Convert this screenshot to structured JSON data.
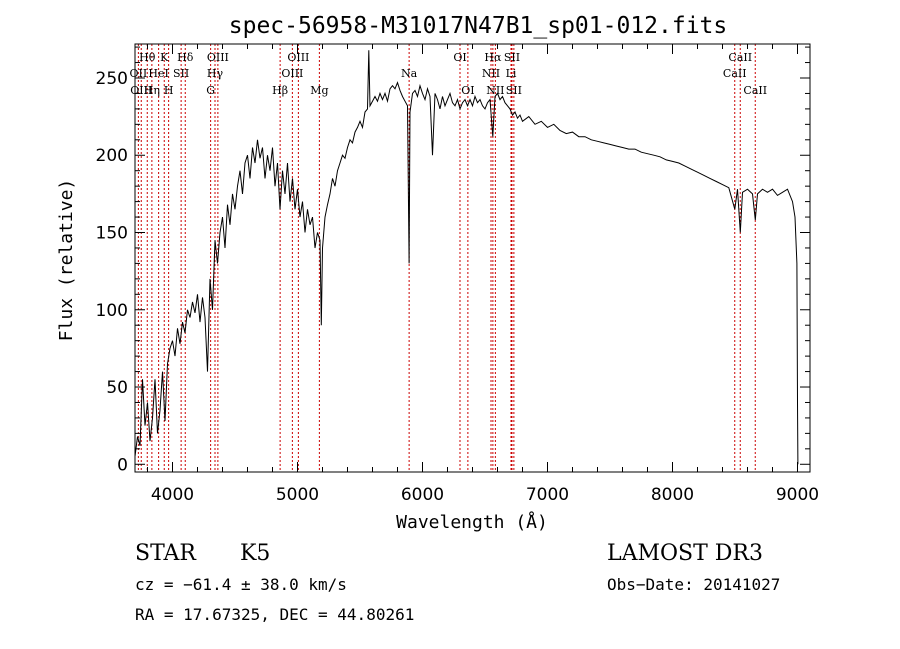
{
  "chart_data": {
    "type": "line",
    "title": "spec-56958-M31017N47B1_sp01-012.fits",
    "xlabel": "Wavelength (Å)",
    "ylabel": "Flux (relative)",
    "xlim": [
      3700,
      9100
    ],
    "ylim": [
      -5,
      272
    ],
    "x_ticks": [
      4000,
      5000,
      6000,
      7000,
      8000,
      9000
    ],
    "y_ticks": [
      0,
      50,
      100,
      150,
      200,
      250
    ],
    "spectrum_points": [
      [
        3700,
        5
      ],
      [
        3720,
        18
      ],
      [
        3740,
        12
      ],
      [
        3760,
        55
      ],
      [
        3780,
        25
      ],
      [
        3800,
        40
      ],
      [
        3820,
        15
      ],
      [
        3840,
        30
      ],
      [
        3860,
        55
      ],
      [
        3880,
        20
      ],
      [
        3900,
        35
      ],
      [
        3920,
        60
      ],
      [
        3940,
        28
      ],
      [
        3960,
        65
      ],
      [
        3980,
        75
      ],
      [
        4000,
        80
      ],
      [
        4020,
        70
      ],
      [
        4040,
        88
      ],
      [
        4060,
        78
      ],
      [
        4080,
        92
      ],
      [
        4100,
        85
      ],
      [
        4120,
        100
      ],
      [
        4140,
        95
      ],
      [
        4160,
        105
      ],
      [
        4180,
        98
      ],
      [
        4200,
        110
      ],
      [
        4220,
        92
      ],
      [
        4240,
        108
      ],
      [
        4260,
        95
      ],
      [
        4280,
        60
      ],
      [
        4300,
        120
      ],
      [
        4320,
        100
      ],
      [
        4340,
        145
      ],
      [
        4360,
        130
      ],
      [
        4380,
        150
      ],
      [
        4400,
        160
      ],
      [
        4420,
        140
      ],
      [
        4440,
        168
      ],
      [
        4460,
        155
      ],
      [
        4480,
        175
      ],
      [
        4500,
        165
      ],
      [
        4520,
        180
      ],
      [
        4540,
        190
      ],
      [
        4560,
        175
      ],
      [
        4580,
        195
      ],
      [
        4600,
        200
      ],
      [
        4620,
        185
      ],
      [
        4640,
        205
      ],
      [
        4660,
        195
      ],
      [
        4680,
        210
      ],
      [
        4700,
        198
      ],
      [
        4720,
        205
      ],
      [
        4740,
        185
      ],
      [
        4760,
        200
      ],
      [
        4780,
        190
      ],
      [
        4800,
        205
      ],
      [
        4820,
        180
      ],
      [
        4840,
        195
      ],
      [
        4860,
        165
      ],
      [
        4880,
        190
      ],
      [
        4900,
        175
      ],
      [
        4920,
        195
      ],
      [
        4940,
        170
      ],
      [
        4960,
        185
      ],
      [
        4980,
        165
      ],
      [
        5000,
        178
      ],
      [
        5020,
        160
      ],
      [
        5040,
        170
      ],
      [
        5060,
        150
      ],
      [
        5080,
        165
      ],
      [
        5100,
        155
      ],
      [
        5120,
        160
      ],
      [
        5140,
        140
      ],
      [
        5160,
        150
      ],
      [
        5180,
        145
      ],
      [
        5190,
        90
      ],
      [
        5200,
        140
      ],
      [
        5220,
        160
      ],
      [
        5240,
        168
      ],
      [
        5260,
        175
      ],
      [
        5280,
        185
      ],
      [
        5300,
        180
      ],
      [
        5320,
        190
      ],
      [
        5340,
        195
      ],
      [
        5360,
        200
      ],
      [
        5380,
        198
      ],
      [
        5400,
        205
      ],
      [
        5420,
        210
      ],
      [
        5440,
        208
      ],
      [
        5460,
        215
      ],
      [
        5480,
        218
      ],
      [
        5500,
        222
      ],
      [
        5520,
        218
      ],
      [
        5540,
        228
      ],
      [
        5560,
        230
      ],
      [
        5570,
        268
      ],
      [
        5580,
        232
      ],
      [
        5600,
        235
      ],
      [
        5620,
        238
      ],
      [
        5640,
        235
      ],
      [
        5660,
        240
      ],
      [
        5680,
        236
      ],
      [
        5700,
        240
      ],
      [
        5720,
        235
      ],
      [
        5740,
        243
      ],
      [
        5760,
        245
      ],
      [
        5780,
        243
      ],
      [
        5800,
        247
      ],
      [
        5820,
        242
      ],
      [
        5840,
        238
      ],
      [
        5860,
        235
      ],
      [
        5880,
        232
      ],
      [
        5893,
        130
      ],
      [
        5900,
        228
      ],
      [
        5920,
        240
      ],
      [
        5940,
        242
      ],
      [
        5960,
        238
      ],
      [
        5980,
        245
      ],
      [
        6000,
        240
      ],
      [
        6020,
        236
      ],
      [
        6040,
        243
      ],
      [
        6060,
        238
      ],
      [
        6080,
        200
      ],
      [
        6100,
        240
      ],
      [
        6120,
        236
      ],
      [
        6140,
        230
      ],
      [
        6160,
        238
      ],
      [
        6180,
        232
      ],
      [
        6200,
        236
      ],
      [
        6220,
        240
      ],
      [
        6240,
        234
      ],
      [
        6260,
        232
      ],
      [
        6280,
        236
      ],
      [
        6300,
        230
      ],
      [
        6320,
        234
      ],
      [
        6340,
        236
      ],
      [
        6360,
        232
      ],
      [
        6380,
        236
      ],
      [
        6400,
        232
      ],
      [
        6420,
        238
      ],
      [
        6440,
        234
      ],
      [
        6460,
        236
      ],
      [
        6480,
        232
      ],
      [
        6500,
        230
      ],
      [
        6520,
        234
      ],
      [
        6540,
        236
      ],
      [
        6562,
        212
      ],
      [
        6580,
        238
      ],
      [
        6600,
        240
      ],
      [
        6620,
        236
      ],
      [
        6640,
        238
      ],
      [
        6660,
        234
      ],
      [
        6680,
        232
      ],
      [
        6700,
        230
      ],
      [
        6720,
        226
      ],
      [
        6740,
        228
      ],
      [
        6760,
        224
      ],
      [
        6780,
        226
      ],
      [
        6800,
        222
      ],
      [
        6850,
        225
      ],
      [
        6900,
        220
      ],
      [
        6950,
        222
      ],
      [
        7000,
        218
      ],
      [
        7050,
        220
      ],
      [
        7100,
        216
      ],
      [
        7150,
        214
      ],
      [
        7200,
        215
      ],
      [
        7250,
        212
      ],
      [
        7300,
        212
      ],
      [
        7350,
        210
      ],
      [
        7400,
        209
      ],
      [
        7450,
        208
      ],
      [
        7500,
        207
      ],
      [
        7550,
        206
      ],
      [
        7600,
        205
      ],
      [
        7650,
        204
      ],
      [
        7700,
        204
      ],
      [
        7750,
        202
      ],
      [
        7800,
        201
      ],
      [
        7850,
        200
      ],
      [
        7900,
        199
      ],
      [
        7950,
        197
      ],
      [
        8000,
        196
      ],
      [
        8050,
        195
      ],
      [
        8100,
        193
      ],
      [
        8150,
        191
      ],
      [
        8200,
        189
      ],
      [
        8250,
        187
      ],
      [
        8300,
        185
      ],
      [
        8350,
        183
      ],
      [
        8400,
        181
      ],
      [
        8450,
        179
      ],
      [
        8498,
        165
      ],
      [
        8520,
        178
      ],
      [
        8542,
        150
      ],
      [
        8560,
        176
      ],
      [
        8600,
        178
      ],
      [
        8640,
        175
      ],
      [
        8662,
        158
      ],
      [
        8680,
        175
      ],
      [
        8720,
        178
      ],
      [
        8760,
        176
      ],
      [
        8800,
        178
      ],
      [
        8840,
        174
      ],
      [
        8880,
        176
      ],
      [
        8920,
        178
      ],
      [
        8960,
        170
      ],
      [
        8980,
        160
      ],
      [
        8995,
        130
      ],
      [
        9000,
        40
      ],
      [
        9003,
        0
      ]
    ],
    "spectral_lines": [
      {
        "label": "Hθ",
        "x": 3798,
        "row": 0
      },
      {
        "label": "OII",
        "x": 3727,
        "row": 1
      },
      {
        "label": "OIII",
        "x": 3750,
        "row": 2
      },
      {
        "label": "K",
        "x": 3934,
        "row": 0
      },
      {
        "label": "HeI",
        "x": 3889,
        "row": 1
      },
      {
        "label": "Hη",
        "x": 3835,
        "row": 2
      },
      {
        "label": "SII",
        "x": 4069,
        "row": 1
      },
      {
        "label": "H",
        "x": 3969,
        "row": 2
      },
      {
        "label": "Hδ",
        "x": 4102,
        "row": 0
      },
      {
        "label": "OIII",
        "x": 4363,
        "row": 0
      },
      {
        "label": "Hγ",
        "x": 4340,
        "row": 1
      },
      {
        "label": "G",
        "x": 4305,
        "row": 2
      },
      {
        "label": "OIII",
        "x": 5007,
        "row": 0
      },
      {
        "label": "OIII",
        "x": 4959,
        "row": 1
      },
      {
        "label": "Hβ",
        "x": 4861,
        "row": 2
      },
      {
        "label": "Mg",
        "x": 5175,
        "row": 2
      },
      {
        "label": "Na",
        "x": 5893,
        "row": 1
      },
      {
        "label": "OI",
        "x": 6300,
        "row": 0
      },
      {
        "label": "OI",
        "x": 6363,
        "row": 2
      },
      {
        "label": "Hα",
        "x": 6563,
        "row": 0
      },
      {
        "label": "SII",
        "x": 6716,
        "row": 0
      },
      {
        "label": "NII",
        "x": 6548,
        "row": 1
      },
      {
        "label": "Li",
        "x": 6708,
        "row": 1
      },
      {
        "label": "NII",
        "x": 6583,
        "row": 2
      },
      {
        "label": "SII",
        "x": 6731,
        "row": 2
      },
      {
        "label": "CaII",
        "x": 8542,
        "row": 0
      },
      {
        "label": "CaII",
        "x": 8498,
        "row": 1
      },
      {
        "label": "CaII",
        "x": 8662,
        "row": 2
      }
    ]
  },
  "info": {
    "object_class": "STAR",
    "subclass": "K5",
    "survey": "LAMOST DR3",
    "cz_text": "cz = −61.4 ± 38.0 km/s",
    "obs_date_text": "Obs−Date: 20141027",
    "radec_text": "RA =  17.67325, DEC =  44.80261"
  },
  "colors": {
    "spectrum": "#000000",
    "line_markers": "#cc0000",
    "axes": "#000000",
    "background": "#ffffff"
  }
}
